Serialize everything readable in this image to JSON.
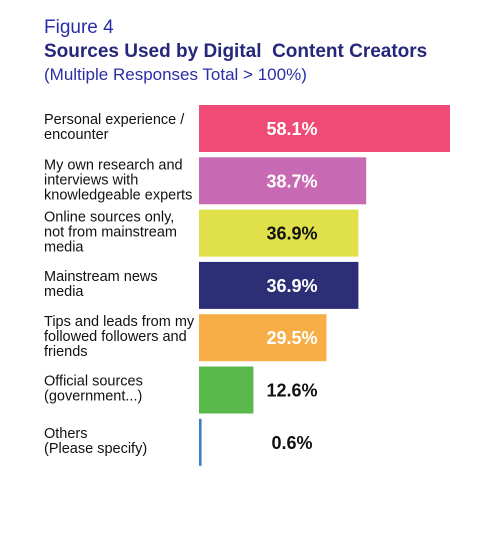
{
  "figure": {
    "label": "Figure 4",
    "title": "Sources Used by Digital  Content Creators",
    "subtitle": "(Multiple Responses Total > 100%)"
  },
  "chart_data": {
    "type": "bar",
    "orientation": "horizontal",
    "categories": [
      [
        "Personal experience /",
        "encounter"
      ],
      [
        "My own research and",
        "interviews with",
        "knowledgeable experts"
      ],
      [
        "Online sources only,",
        "not from mainstream",
        "media"
      ],
      [
        "Mainstream news",
        "media"
      ],
      [
        "Tips and leads from my",
        "followed followers and",
        "friends"
      ],
      [
        "Official sources",
        "(government...)"
      ],
      [
        "Others",
        "(Please specify)"
      ]
    ],
    "values": [
      58.1,
      38.7,
      36.9,
      36.9,
      29.5,
      12.6,
      0.6
    ],
    "value_labels": [
      "58.1%",
      "38.7%",
      "36.9%",
      "36.9%",
      "29.5%",
      "12.6%",
      "0.6%"
    ],
    "colors": [
      "#ef4b76",
      "#c86ab3",
      "#dfe04a",
      "#2c2f76",
      "#f8ae47",
      "#58b84a",
      "#3f7ecb"
    ],
    "label_colors": [
      "#ffffff",
      "#ffffff",
      "#111111",
      "#ffffff",
      "#ffffff",
      "#111111",
      "#111111"
    ],
    "title": "Sources Used by Digital  Content Creators",
    "xlabel": "",
    "ylabel": "",
    "xlim": [
      0,
      60
    ],
    "grid": false,
    "legend": "none"
  }
}
